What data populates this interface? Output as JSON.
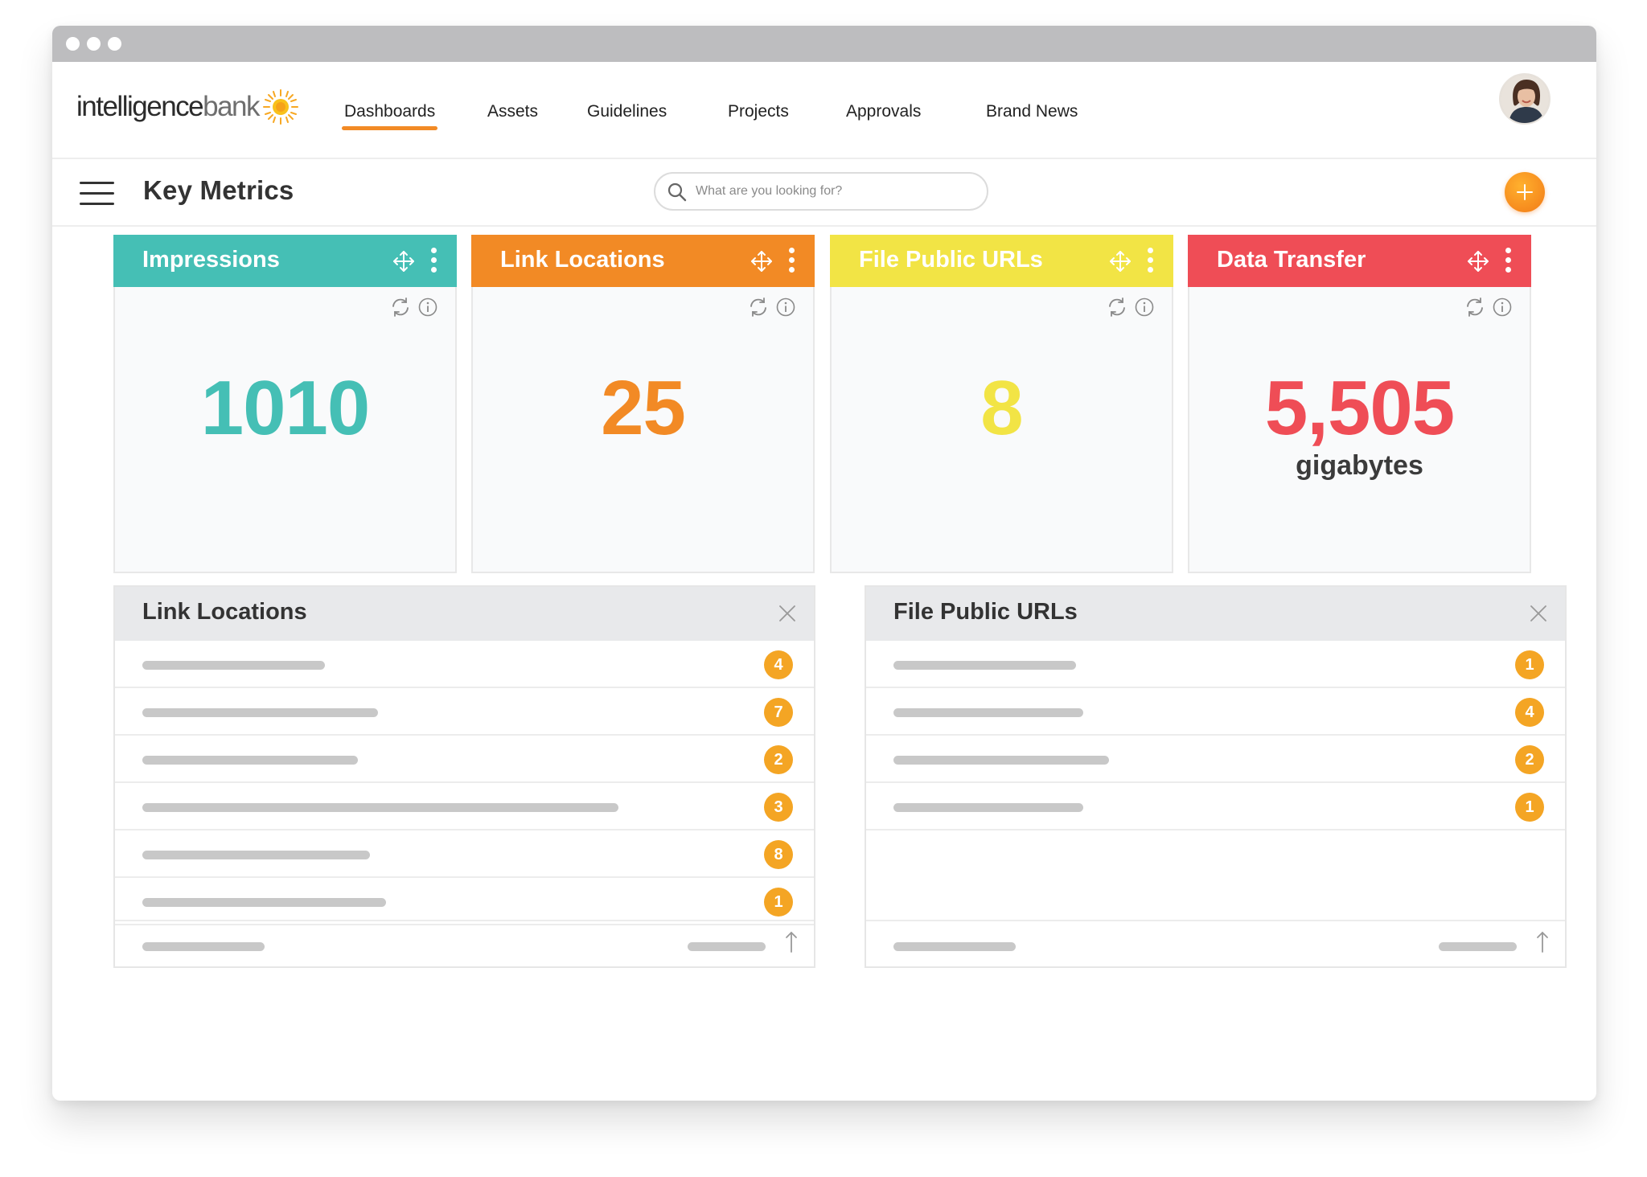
{
  "app": {
    "logo_text_main": "intelligence",
    "logo_text_accent": "bank"
  },
  "nav": {
    "items": [
      {
        "label": "Dashboards",
        "active": true
      },
      {
        "label": "Assets",
        "active": false
      },
      {
        "label": "Guidelines",
        "active": false
      },
      {
        "label": "Projects",
        "active": false
      },
      {
        "label": "Approvals",
        "active": false
      },
      {
        "label": "Brand News",
        "active": false
      }
    ],
    "accent_color": "#f28a25"
  },
  "subbar": {
    "page_title": "Key Metrics",
    "search_placeholder": "What are you looking for?"
  },
  "metrics": [
    {
      "title": "Impressions",
      "value": "1010",
      "unit": "",
      "color": "#45bfb5"
    },
    {
      "title": "Link Locations",
      "value": "25",
      "unit": "",
      "color": "#f28a25"
    },
    {
      "title": "File Public URLs",
      "value": "8",
      "unit": "",
      "color": "#f2e445"
    },
    {
      "title": "Data Transfer",
      "value": "5,505",
      "unit": "gigabytes",
      "color": "#ef4d56"
    }
  ],
  "panels": [
    {
      "title": "Link Locations",
      "rows": [
        {
          "count": "4"
        },
        {
          "count": "7"
        },
        {
          "count": "2"
        },
        {
          "count": "3"
        },
        {
          "count": "8"
        },
        {
          "count": "1"
        }
      ]
    },
    {
      "title": "File Public URLs",
      "rows": [
        {
          "count": "1"
        },
        {
          "count": "4"
        },
        {
          "count": "2"
        },
        {
          "count": "1"
        }
      ]
    }
  ],
  "icons": {
    "move": "move-icon",
    "menu": "kebab-menu-icon",
    "refresh": "refresh-icon",
    "info": "info-icon",
    "close": "close-icon",
    "sort": "arrow-up-icon",
    "search": "search-icon",
    "add": "plus-icon",
    "hamburger": "hamburger-menu-icon"
  },
  "badge_color": "#f4a524"
}
